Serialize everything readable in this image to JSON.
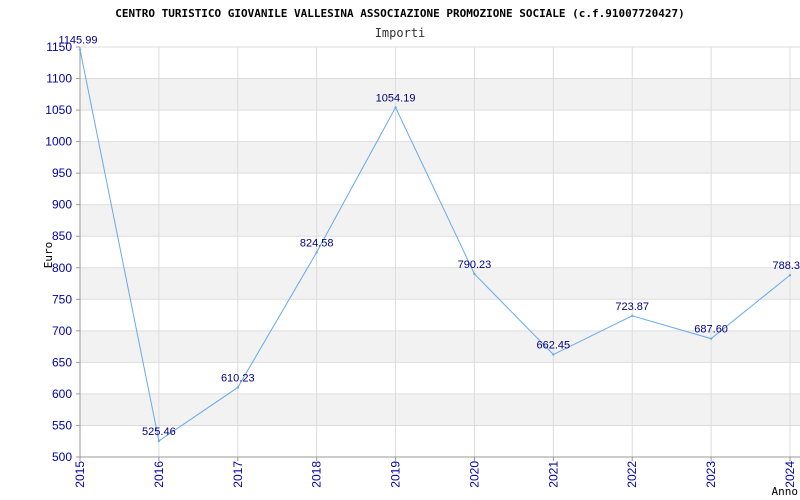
{
  "chart_data": {
    "type": "line",
    "title": "CENTRO TURISTICO GIOVANILE VALLESINA ASSOCIAZIONE PROMOZIONE SOCIALE (c.f.91007720427)",
    "subtitle": "Importi",
    "xlabel": "Anno",
    "ylabel": "Euro",
    "x": [
      "2015",
      "2016",
      "2017",
      "2018",
      "2019",
      "2020",
      "2021",
      "2022",
      "2023",
      "2024"
    ],
    "values": [
      1145.99,
      525.46,
      610.23,
      824.58,
      1054.19,
      790.23,
      662.45,
      723.87,
      687.6,
      788.3
    ],
    "labels": [
      "1145.99",
      "525.46",
      "610.23",
      "824.58",
      "1054.19",
      "790.23",
      "662.45",
      "723.87",
      "687.60",
      "788.3"
    ],
    "ylim": [
      500,
      1150
    ],
    "yticks": [
      500,
      550,
      600,
      650,
      700,
      750,
      800,
      850,
      900,
      950,
      1000,
      1050,
      1100,
      1150
    ],
    "grid": true,
    "legend": "none",
    "colors": {
      "line": "#66aaee",
      "band": "#f2f2f2",
      "grid": "#dddddd",
      "tick_text": "#0000aa",
      "label_text": "#000080"
    }
  }
}
